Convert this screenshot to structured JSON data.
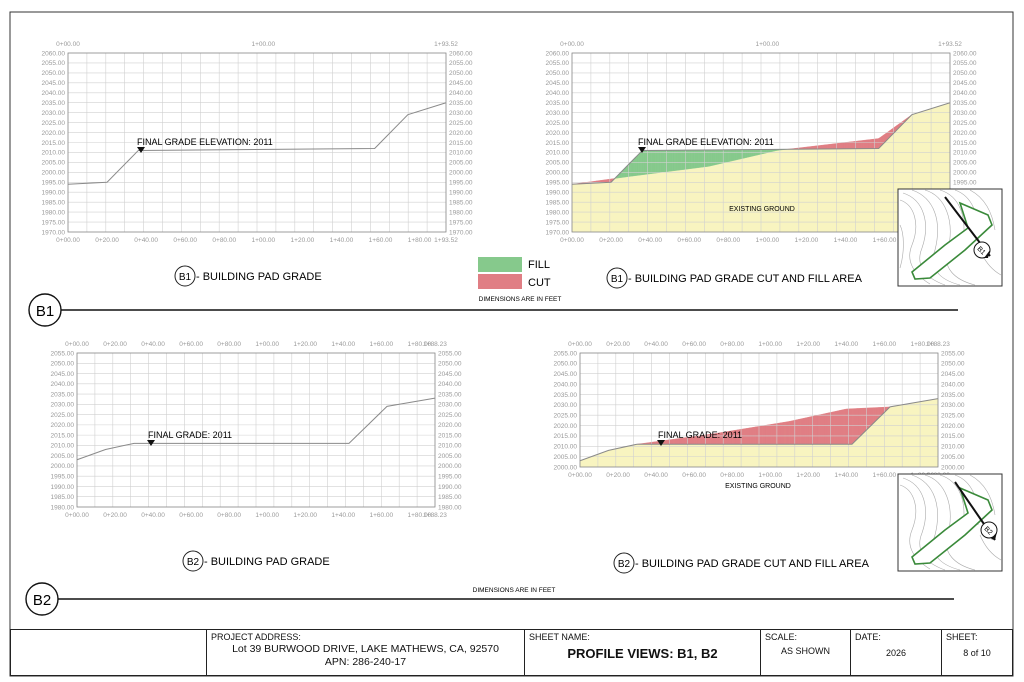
{
  "axes": {
    "b1_left": {
      "top_labels": [
        "0+00.00",
        "1+00.00",
        "1+93.52"
      ],
      "bottom_labels": [
        "0+00.00",
        "0+20.00",
        "0+40.00",
        "0+60.00",
        "0+80.00",
        "1+00.00",
        "1+20.00",
        "1+40.00",
        "1+60.00",
        "1+80.00",
        "1+93.52"
      ],
      "y_labels": [
        "2060.00",
        "2055.00",
        "2050.00",
        "2045.00",
        "2040.00",
        "2035.00",
        "2030.00",
        "2025.00",
        "2020.00",
        "2015.00",
        "2010.00",
        "2005.00",
        "2000.00",
        "1995.00",
        "1990.00",
        "1985.00",
        "1980.00",
        "1975.00",
        "1970.00"
      ]
    },
    "b1_right": {
      "top_labels": [
        "0+00.00",
        "1+00.00",
        "1+93.52"
      ],
      "bottom_labels": [
        "0+00.00",
        "0+20.00",
        "0+40.00",
        "0+60.00",
        "0+80.00",
        "1+00.00",
        "1+20.00",
        "1+40.00",
        "1+60.00",
        "1+80.00",
        "1+93.52"
      ],
      "y_labels": [
        "2060.00",
        "2055.00",
        "2050.00",
        "2045.00",
        "2040.00",
        "2035.00",
        "2030.00",
        "2025.00",
        "2020.00",
        "2015.00",
        "2010.00",
        "2005.00",
        "2000.00",
        "1995.00",
        "1990.00",
        "1985.00",
        "1980.00",
        "1975.00",
        "1970.00"
      ]
    },
    "b2_left": {
      "top_labels": [
        "0+00.00",
        "0+20.00",
        "0+40.00",
        "0+60.00",
        "0+80.00",
        "1+00.00",
        "1+20.00",
        "1+40.00",
        "1+60.00",
        "1+80.00",
        "1+88.23"
      ],
      "bottom_labels": [
        "0+00.00",
        "0+20.00",
        "0+40.00",
        "0+60.00",
        "0+80.00",
        "1+00.00",
        "1+20.00",
        "1+40.00",
        "1+60.00",
        "1+80.00",
        "1+88.23"
      ],
      "y_labels": [
        "2055.00",
        "2050.00",
        "2045.00",
        "2040.00",
        "2035.00",
        "2030.00",
        "2025.00",
        "2020.00",
        "2015.00",
        "2010.00",
        "2005.00",
        "2000.00",
        "1995.00",
        "1990.00",
        "1985.00",
        "1980.00"
      ]
    },
    "b2_right": {
      "top_labels": [
        "0+00.00",
        "0+20.00",
        "0+40.00",
        "0+60.00",
        "0+80.00",
        "1+00.00",
        "1+20.00",
        "1+40.00",
        "1+60.00",
        "1+80.00",
        "1+88.23"
      ],
      "bottom_labels": [
        "0+00.00",
        "0+20.00",
        "0+40.00",
        "0+60.00",
        "0+80.00",
        "1+00.00",
        "1+20.00",
        "1+40.00",
        "1+60.00",
        "1+80.00",
        "1+88.23"
      ],
      "y_labels": [
        "2055.00",
        "2050.00",
        "2045.00",
        "2040.00",
        "2035.00",
        "2030.00",
        "2025.00",
        "2020.00",
        "2015.00",
        "2010.00",
        "2005.00",
        "2000.00"
      ]
    }
  },
  "b1": {
    "left_annotation": "FINAL GRADE ELEVATION: 2011",
    "right_annotation": "FINAL GRADE ELEVATION: 2011",
    "existing_ground_label": "EXISTING GROUND",
    "left_caption_badge": "B1",
    "left_caption": " - BUILDING PAD GRADE",
    "right_caption_badge": "B1",
    "right_caption": " - BUILDING PAD GRADE CUT AND FILL AREA",
    "section_marker": "B1",
    "inset_badge": "B1",
    "final_grade_profile": [
      [
        0,
        1994
      ],
      [
        20,
        1995
      ],
      [
        36,
        2011
      ],
      [
        157,
        2012
      ],
      [
        174,
        2029
      ],
      [
        193.52,
        2035
      ]
    ],
    "existing_ground_profile": [
      [
        0,
        1994
      ],
      [
        30,
        1998
      ],
      [
        70,
        2003
      ],
      [
        105,
        2011
      ],
      [
        157,
        2017
      ],
      [
        174,
        2029
      ],
      [
        193.52,
        2035
      ]
    ]
  },
  "b2": {
    "left_annotation": "FINAL GRADE: 2011",
    "right_annotation": "FINAL GRADE: 2011",
    "existing_ground_label": "EXISTING GROUND",
    "left_caption_badge": "B2",
    "left_caption": " - BUILDING PAD GRADE",
    "right_caption_badge": "B2",
    "right_caption": " - BUILDING PAD GRADE CUT AND FILL AREA",
    "section_marker": "B2",
    "inset_badge": "B2",
    "final_grade_profile": [
      [
        0,
        2003
      ],
      [
        15,
        2008
      ],
      [
        30,
        2011
      ],
      [
        143,
        2011
      ],
      [
        163,
        2029
      ],
      [
        188.23,
        2033
      ]
    ],
    "existing_ground_profile": [
      [
        0,
        2003
      ],
      [
        15,
        2008
      ],
      [
        30,
        2011
      ],
      [
        70,
        2016
      ],
      [
        110,
        2022
      ],
      [
        140,
        2028
      ],
      [
        163,
        2029
      ],
      [
        188.23,
        2033
      ]
    ]
  },
  "legend": {
    "fill_label": "FILL",
    "cut_label": "CUT",
    "fill_color": "#86c98c",
    "cut_color": "#e07e84",
    "existing_color": "#f8f4c0",
    "note": "DIMENSIONS ARE IN FEET"
  },
  "b2_dimensions_note": "DIMENSIONS ARE IN FEET",
  "title_block": {
    "project_address_label": "PROJECT ADDRESS:",
    "project_address_line1": "Lot 39 BURWOOD DRIVE, LAKE MATHEWS, CA, 92570",
    "project_address_line2": "APN: 286-240-17",
    "sheet_name_label": "SHEET NAME:",
    "sheet_name": "PROFILE VIEWS: B1, B2",
    "scale_label": "SCALE:",
    "scale_value": "AS SHOWN",
    "date_label": "DATE:",
    "date_value": "2026",
    "sheet_label": "SHEET:",
    "sheet_value": "8 of 10"
  }
}
